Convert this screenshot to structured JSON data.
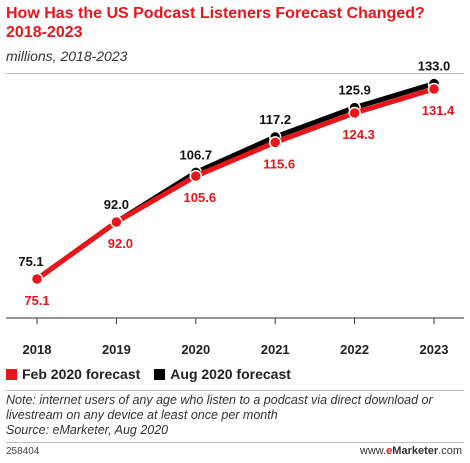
{
  "header": {
    "title": "How Has the US Podcast Listeners Forecast Changed? 2018-2023",
    "subtitle": "millions, 2018-2023"
  },
  "legend": [
    {
      "label": "Feb 2020 forecast",
      "color": "#e8151c"
    },
    {
      "label": "Aug 2020 forecast",
      "color": "#000000"
    }
  ],
  "footer": {
    "note": "Note: internet users of any age who listen to a podcast via direct download or livestream on any device at least once per month",
    "source": "Source: eMarketer, Aug 2020",
    "id": "258404",
    "brand_prefix": "www.",
    "brand_e": "e",
    "brand_rest": "Marketer",
    "brand_suffix": ".com"
  },
  "chart_data": {
    "type": "line",
    "x": [
      "2018",
      "2019",
      "2020",
      "2021",
      "2022",
      "2023"
    ],
    "series": [
      {
        "name": "Feb 2020 forecast",
        "color": "#e8151c",
        "values": [
          75.1,
          92.0,
          105.6,
          115.6,
          124.3,
          131.4
        ],
        "labels": [
          "75.1",
          "92.0",
          "105.6",
          "115.6",
          "124.3",
          "131.4"
        ]
      },
      {
        "name": "Aug 2020 forecast",
        "color": "#000000",
        "values": [
          75.1,
          92.0,
          106.7,
          117.2,
          125.9,
          133.0
        ],
        "labels": [
          "75.1",
          "92.0",
          "106.7",
          "117.2",
          "125.9",
          "133.0"
        ]
      }
    ],
    "ylim": [
      60,
      140
    ],
    "grid": false,
    "legend_position": "bottom-left"
  }
}
